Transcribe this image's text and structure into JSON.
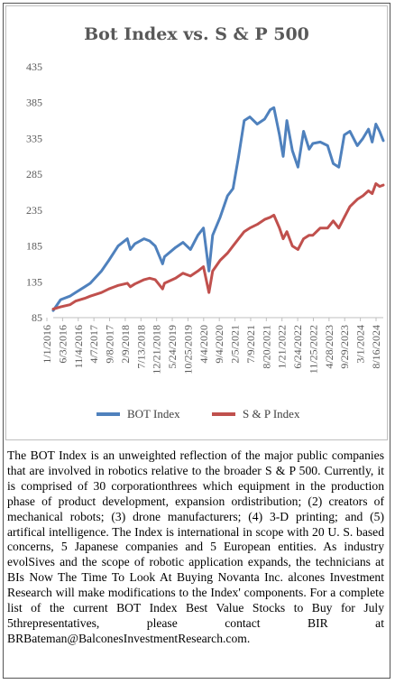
{
  "chart_data": {
    "type": "line",
    "title": "Bot Index vs. S & P 500",
    "xlabel": "",
    "ylabel": "",
    "ylim": [
      85,
      435
    ],
    "yticks": [
      85,
      135,
      185,
      235,
      285,
      335,
      385,
      435
    ],
    "xtick_labels": [
      "1/1/2016",
      "6/3/2016",
      "11/4/2016",
      "4/7/2017",
      "9/8/2017",
      "2/9/2018",
      "7/13/2018",
      "12/21/2018",
      "5/24/2019",
      "10/25/2019",
      "4/4/2020",
      "9/4/2020",
      "2/5/2021",
      "7/9/2021",
      "8/20/2021",
      "1/21/2022",
      "6/24/2022",
      "11/25/2022",
      "4/28/2023",
      "9/29/2023",
      "3/1/2024",
      "8/16/2024"
    ],
    "grid": false,
    "legend_position": "bottom",
    "x_years": [
      2016.0,
      2016.2,
      2016.45,
      2016.6,
      2016.85,
      2017.0,
      2017.3,
      2017.5,
      2017.75,
      2018.0,
      2018.08,
      2018.2,
      2018.45,
      2018.6,
      2018.75,
      2018.95,
      2019.0,
      2019.3,
      2019.5,
      2019.7,
      2019.9,
      2020.05,
      2020.2,
      2020.3,
      2020.5,
      2020.7,
      2020.85,
      2021.0,
      2021.15,
      2021.3,
      2021.5,
      2021.7,
      2021.85,
      2021.95,
      2022.1,
      2022.2,
      2022.3,
      2022.45,
      2022.6,
      2022.75,
      2022.9,
      2023.0,
      2023.2,
      2023.4,
      2023.55,
      2023.7,
      2023.85,
      2024.0,
      2024.2,
      2024.35,
      2024.5,
      2024.6,
      2024.7,
      2024.8,
      2024.9
    ],
    "series": [
      {
        "name": "BOT Index",
        "color": "#4f81bd",
        "values": [
          95,
          110,
          115,
          120,
          128,
          133,
          150,
          165,
          185,
          195,
          180,
          188,
          195,
          192,
          185,
          160,
          170,
          183,
          190,
          180,
          200,
          210,
          150,
          200,
          225,
          255,
          265,
          310,
          360,
          365,
          355,
          362,
          375,
          378,
          340,
          310,
          360,
          318,
          295,
          345,
          320,
          328,
          330,
          325,
          300,
          295,
          340,
          345,
          325,
          335,
          348,
          330,
          355,
          345,
          332
        ]
      },
      {
        "name": "S & P Index",
        "color": "#c0504d",
        "values": [
          97,
          100,
          103,
          108,
          112,
          115,
          120,
          125,
          130,
          133,
          128,
          132,
          138,
          140,
          138,
          125,
          133,
          140,
          147,
          143,
          150,
          156,
          120,
          150,
          165,
          175,
          185,
          195,
          205,
          210,
          215,
          222,
          225,
          228,
          210,
          195,
          205,
          185,
          180,
          195,
          200,
          200,
          210,
          210,
          220,
          210,
          225,
          240,
          250,
          255,
          262,
          258,
          272,
          268,
          270
        ]
      }
    ]
  },
  "legend": {
    "bot_label": "BOT Index",
    "sp_label": "S & P Index"
  },
  "caption": "The BOT Index is an unweighted reflection of the major public companies that are involved in robotics relative to the broader S & P 500. Currently, it is comprised of 30 corporationthrees which equipment in the production phase of product development, expansion ordistribution; (2) creators of mechanical robots; (3) drone manufacturers; (4) 3-D printing; and (5) artifical intelligence. The Index is international in scope with 20 U. S. based concerns, 5 Japanese companies and 5 European entities. As industry evolSives and the scope of robotic application expands, the technicians at BIs Now The Time To Look At Buying Novanta Inc. alcones Investment Research will make modifications to the Index' components. For a  complete list of the current BOT Index Best Value Stocks to Buy for July 5threpresentatives, please contact BIR at BRBateman@BalconesInvestmentResearch.com."
}
